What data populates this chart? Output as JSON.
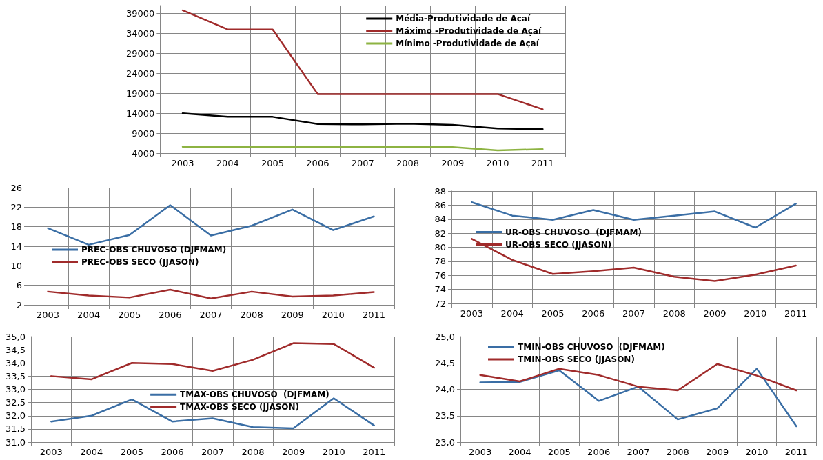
{
  "chart_data": [
    {
      "type": "line",
      "categories": [
        "2003",
        "2004",
        "2005",
        "2006",
        "2007",
        "2008",
        "2009",
        "2010",
        "2011"
      ],
      "ylim": [
        4000,
        41000
      ],
      "yticks": [
        4000,
        9000,
        14000,
        19000,
        24000,
        29000,
        34000,
        39000
      ],
      "grid": true,
      "legend": "top right",
      "marker": "none",
      "line_style": "solid",
      "series": [
        {
          "name": "Média-Produtividade de Açaí",
          "color": "#000000",
          "values": [
            14000,
            13100,
            13100,
            11300,
            11200,
            11400,
            11100,
            10200,
            10000
          ]
        },
        {
          "name": "Máximo -Produtividade de Açaí",
          "color": "#a02b2b",
          "values": [
            39800,
            35000,
            35000,
            18800,
            18800,
            18800,
            18800,
            18800,
            15000
          ]
        },
        {
          "name": "Mínimo -Produtividade de Açaí",
          "color": "#8db342",
          "values": [
            5600,
            5600,
            5500,
            5500,
            5500,
            5500,
            5500,
            4700,
            5000
          ]
        }
      ]
    },
    {
      "type": "line",
      "categories": [
        "2003",
        "2004",
        "2005",
        "2006",
        "2007",
        "2008",
        "2009",
        "2010",
        "2011"
      ],
      "ylim": [
        2,
        26
      ],
      "yticks": [
        2,
        6,
        10,
        14,
        18,
        22,
        26
      ],
      "grid": true,
      "legend": "left",
      "marker": "none",
      "line_style": "solid",
      "series": [
        {
          "name": "PREC-OBS CHUVOSO (DJFMAM)",
          "color": "#3a6ea5",
          "values": [
            17.7,
            14.3,
            16.3,
            22.4,
            16.2,
            18.2,
            21.5,
            17.3,
            20.1
          ]
        },
        {
          "name": "PREC-OBS SECO (JJASON)",
          "color": "#a02b2b",
          "values": [
            4.7,
            3.9,
            3.5,
            5.1,
            3.3,
            4.7,
            3.7,
            3.9,
            4.6
          ]
        }
      ]
    },
    {
      "type": "line",
      "categories": [
        "2003",
        "2004",
        "2005",
        "2006",
        "2007",
        "2008",
        "2009",
        "2010",
        "2011"
      ],
      "ylim": [
        72,
        88
      ],
      "yticks": [
        72,
        74,
        76,
        78,
        80,
        82,
        84,
        86,
        88
      ],
      "grid": true,
      "legend": "left",
      "marker": "none",
      "line_style": "solid",
      "series": [
        {
          "name": "UR-OBS CHUVOSO  (DJFMAM)",
          "color": "#3a6ea5",
          "values": [
            86.4,
            84.5,
            83.9,
            85.3,
            83.9,
            84.5,
            85.1,
            82.8,
            86.2
          ]
        },
        {
          "name": "UR-OBS SECO (JJASON)",
          "color": "#a02b2b",
          "values": [
            81.2,
            78.2,
            76.2,
            76.6,
            77.1,
            75.8,
            75.2,
            76.1,
            77.4
          ]
        }
      ]
    },
    {
      "type": "line",
      "categories": [
        "2003",
        "2004",
        "2005",
        "2006",
        "2007",
        "2008",
        "2009",
        "2010",
        "2011"
      ],
      "ylim": [
        31,
        35
      ],
      "yticks": [
        {
          "value": 31,
          "label": "31,0"
        },
        {
          "value": 31.5,
          "label": "31,5"
        },
        {
          "value": 32,
          "label": "32,0"
        },
        {
          "value": 32.5,
          "label": "32,5"
        },
        {
          "value": 33,
          "label": "33,0"
        },
        {
          "value": 33.5,
          "label": "33,5"
        },
        {
          "value": 34,
          "label": "34,0"
        },
        {
          "value": 34.5,
          "label": "34,5"
        },
        {
          "value": 35,
          "label": "35,0"
        }
      ],
      "grid": true,
      "legend": "center",
      "marker": "none",
      "line_style": "solid",
      "series": [
        {
          "name": "TMAX-OBS CHUVOSO  (DJFMAM)",
          "color": "#3a6ea5",
          "values": [
            31.78,
            32.0,
            32.62,
            31.78,
            31.9,
            31.57,
            31.52,
            32.66,
            31.63
          ]
        },
        {
          "name": "TMAX-OBS SECO (JJASON)",
          "color": "#a02b2b",
          "values": [
            33.5,
            33.38,
            34.0,
            33.96,
            33.7,
            34.12,
            34.75,
            34.72,
            33.82
          ]
        }
      ]
    },
    {
      "type": "line",
      "categories": [
        "2003",
        "2004",
        "2005",
        "2006",
        "2007",
        "2008",
        "2009",
        "2010",
        "2011"
      ],
      "ylim": [
        23,
        25
      ],
      "yticks": [
        {
          "value": 23,
          "label": "23,0"
        },
        {
          "value": 23.5,
          "label": "23,5"
        },
        {
          "value": 24,
          "label": "24,0"
        },
        {
          "value": 24.5,
          "label": "24,5"
        },
        {
          "value": 25,
          "label": "25,0"
        }
      ],
      "grid": true,
      "legend": "top left",
      "marker": "none",
      "line_style": "solid",
      "series": [
        {
          "name": "TMIN-OBS CHUVOSO  (DJFMAM)",
          "color": "#3a6ea5",
          "values": [
            24.13,
            24.14,
            24.36,
            23.78,
            24.05,
            23.43,
            23.64,
            24.39,
            23.3
          ]
        },
        {
          "name": "TMIN-OBS SECO (JJASON)",
          "color": "#a02b2b",
          "values": [
            24.27,
            24.15,
            24.39,
            24.27,
            24.05,
            23.98,
            24.48,
            24.26,
            23.98
          ]
        }
      ]
    }
  ]
}
